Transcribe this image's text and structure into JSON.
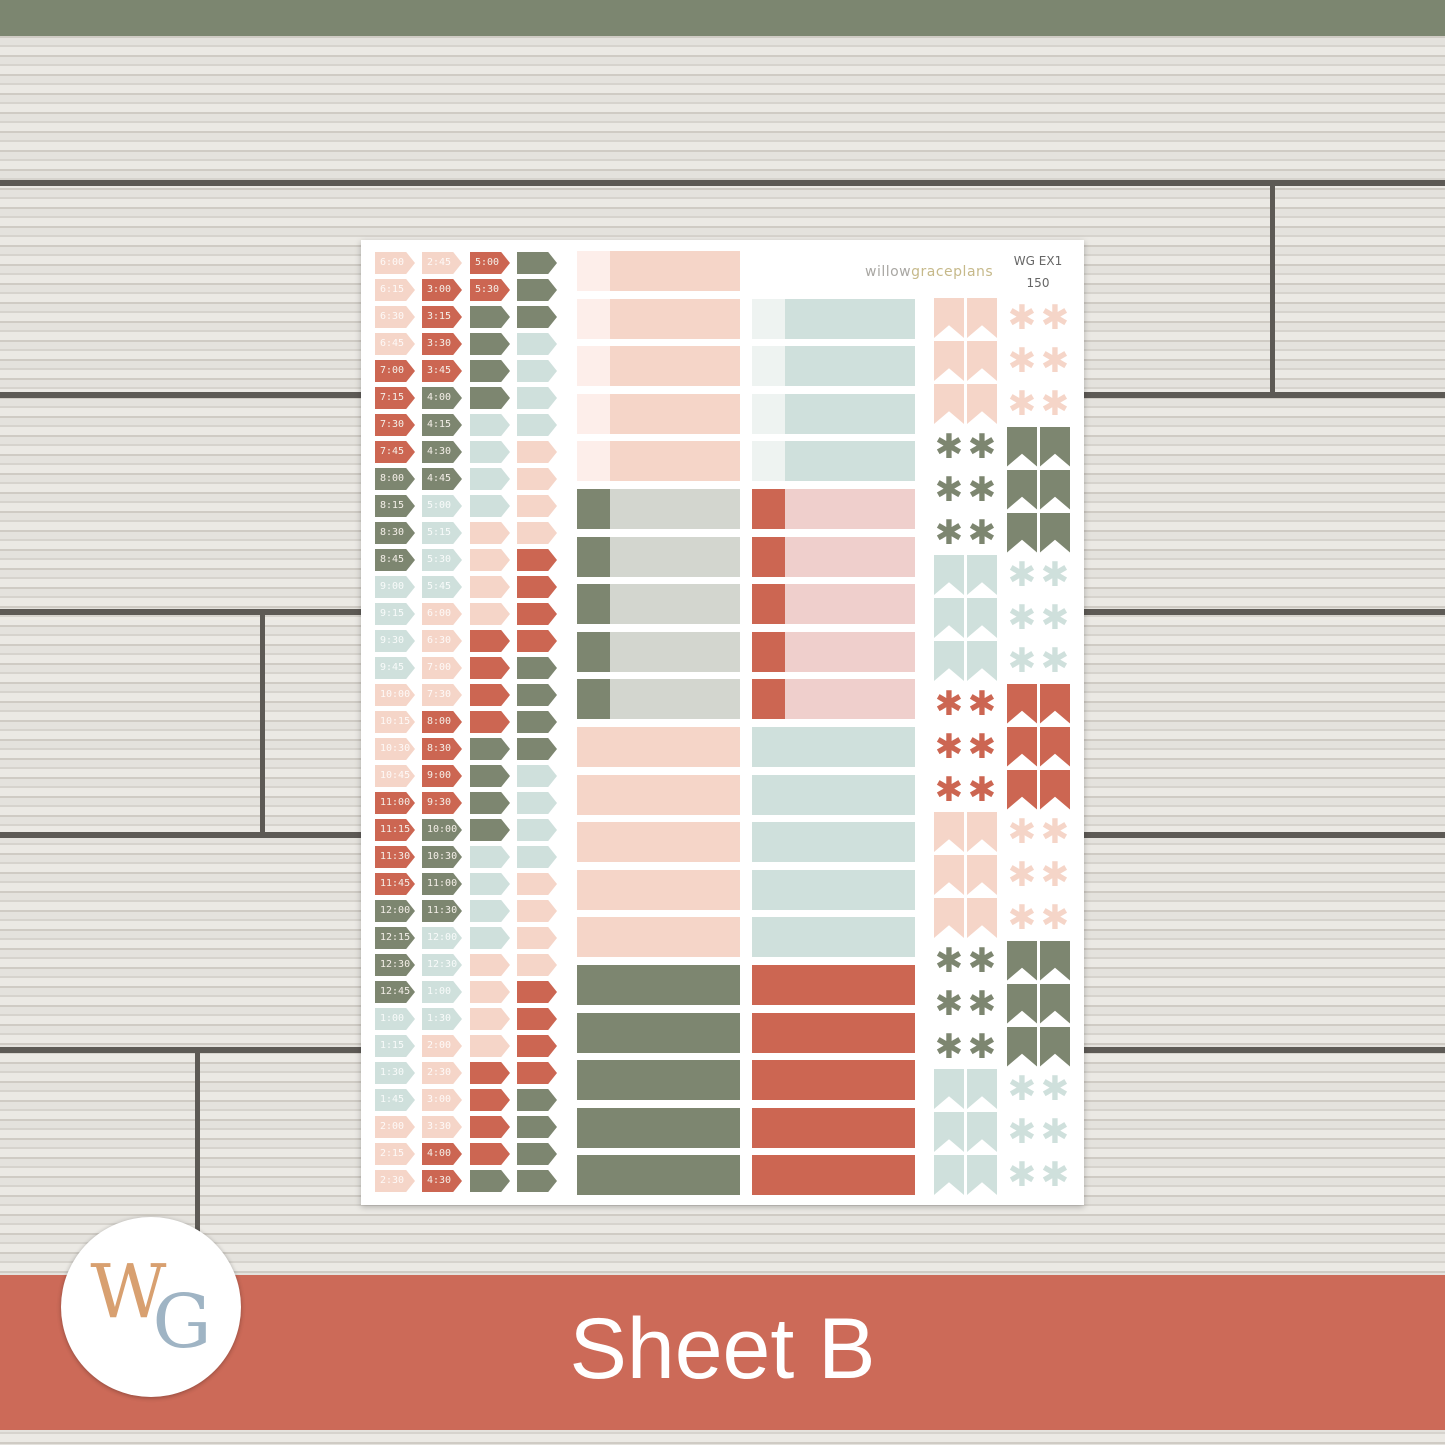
{
  "palette": {
    "peach": "#f5d5c8",
    "red": "#cc6652",
    "green": "#7d8670",
    "blue": "#cfe0dc",
    "blush": "#fdeeea",
    "mist": "#eef3f1",
    "sage_light": "#d3d6cf",
    "pink": "#efcfcc"
  },
  "sheet": {
    "brand_prefix": "willow",
    "brand_suffix": "graceplans",
    "code": "WG EX1",
    "number": "150",
    "time_columns": [
      [
        [
          "6:00",
          "peach"
        ],
        [
          "6:15",
          "peach"
        ],
        [
          "6:30",
          "peach"
        ],
        [
          "6:45",
          "peach"
        ],
        [
          "7:00",
          "red"
        ],
        [
          "7:15",
          "red"
        ],
        [
          "7:30",
          "red"
        ],
        [
          "7:45",
          "red"
        ],
        [
          "8:00",
          "green"
        ],
        [
          "8:15",
          "green"
        ],
        [
          "8:30",
          "green"
        ],
        [
          "8:45",
          "green"
        ],
        [
          "9:00",
          "blue"
        ],
        [
          "9:15",
          "blue"
        ],
        [
          "9:30",
          "blue"
        ],
        [
          "9:45",
          "blue"
        ],
        [
          "10:00",
          "peach"
        ],
        [
          "10:15",
          "peach"
        ],
        [
          "10:30",
          "peach"
        ],
        [
          "10:45",
          "peach"
        ],
        [
          "11:00",
          "red"
        ],
        [
          "11:15",
          "red"
        ],
        [
          "11:30",
          "red"
        ],
        [
          "11:45",
          "red"
        ],
        [
          "12:00",
          "green"
        ],
        [
          "12:15",
          "green"
        ],
        [
          "12:30",
          "green"
        ],
        [
          "12:45",
          "green"
        ],
        [
          "1:00",
          "blue"
        ],
        [
          "1:15",
          "blue"
        ],
        [
          "1:30",
          "blue"
        ],
        [
          "1:45",
          "blue"
        ],
        [
          "2:00",
          "peach"
        ],
        [
          "2:15",
          "peach"
        ],
        [
          "2:30",
          "peach"
        ]
      ],
      [
        [
          "2:45",
          "peach"
        ],
        [
          "3:00",
          "red"
        ],
        [
          "3:15",
          "red"
        ],
        [
          "3:30",
          "red"
        ],
        [
          "3:45",
          "red"
        ],
        [
          "4:00",
          "green"
        ],
        [
          "4:15",
          "green"
        ],
        [
          "4:30",
          "green"
        ],
        [
          "4:45",
          "green"
        ],
        [
          "5:00",
          "blue"
        ],
        [
          "5:15",
          "blue"
        ],
        [
          "5:30",
          "blue"
        ],
        [
          "5:45",
          "blue"
        ],
        [
          "6:00",
          "peach"
        ],
        [
          "6:30",
          "peach"
        ],
        [
          "7:00",
          "peach"
        ],
        [
          "7:30",
          "peach"
        ],
        [
          "8:00",
          "red"
        ],
        [
          "8:30",
          "red"
        ],
        [
          "9:00",
          "red"
        ],
        [
          "9:30",
          "red"
        ],
        [
          "10:00",
          "green"
        ],
        [
          "10:30",
          "green"
        ],
        [
          "11:00",
          "green"
        ],
        [
          "11:30",
          "green"
        ],
        [
          "12:00",
          "blue"
        ],
        [
          "12:30",
          "blue"
        ],
        [
          "1:00",
          "blue"
        ],
        [
          "1:30",
          "blue"
        ],
        [
          "2:00",
          "peach"
        ],
        [
          "2:30",
          "peach"
        ],
        [
          "3:00",
          "peach"
        ],
        [
          "3:30",
          "peach"
        ],
        [
          "4:00",
          "red"
        ],
        [
          "4:30",
          "red"
        ]
      ],
      [
        [
          "5:00",
          "red"
        ],
        [
          "5:30",
          "red"
        ],
        [
          "",
          "green"
        ],
        [
          "",
          "green"
        ],
        [
          "",
          "green"
        ],
        [
          "",
          "green"
        ],
        [
          "",
          "blue"
        ],
        [
          "",
          "blue"
        ],
        [
          "",
          "blue"
        ],
        [
          "",
          "blue"
        ],
        [
          "",
          "peach"
        ],
        [
          "",
          "peach"
        ],
        [
          "",
          "peach"
        ],
        [
          "",
          "peach"
        ],
        [
          "",
          "red"
        ],
        [
          "",
          "red"
        ],
        [
          "",
          "red"
        ],
        [
          "",
          "red"
        ],
        [
          "",
          "green"
        ],
        [
          "",
          "green"
        ],
        [
          "",
          "green"
        ],
        [
          "",
          "green"
        ],
        [
          "",
          "blue"
        ],
        [
          "",
          "blue"
        ],
        [
          "",
          "blue"
        ],
        [
          "",
          "blue"
        ],
        [
          "",
          "peach"
        ],
        [
          "",
          "peach"
        ],
        [
          "",
          "peach"
        ],
        [
          "",
          "peach"
        ],
        [
          "",
          "red"
        ],
        [
          "",
          "red"
        ],
        [
          "",
          "red"
        ],
        [
          "",
          "red"
        ],
        [
          "",
          "green"
        ]
      ],
      [
        [
          "",
          "green"
        ],
        [
          "",
          "green"
        ],
        [
          "",
          "green"
        ],
        [
          "",
          "blue"
        ],
        [
          "",
          "blue"
        ],
        [
          "",
          "blue"
        ],
        [
          "",
          "blue"
        ],
        [
          "",
          "peach"
        ],
        [
          "",
          "peach"
        ],
        [
          "",
          "peach"
        ],
        [
          "",
          "peach"
        ],
        [
          "",
          "red"
        ],
        [
          "",
          "red"
        ],
        [
          "",
          "red"
        ],
        [
          "",
          "red"
        ],
        [
          "",
          "green"
        ],
        [
          "",
          "green"
        ],
        [
          "",
          "green"
        ],
        [
          "",
          "green"
        ],
        [
          "",
          "blue"
        ],
        [
          "",
          "blue"
        ],
        [
          "",
          "blue"
        ],
        [
          "",
          "blue"
        ],
        [
          "",
          "peach"
        ],
        [
          "",
          "peach"
        ],
        [
          "",
          "peach"
        ],
        [
          "",
          "peach"
        ],
        [
          "",
          "red"
        ],
        [
          "",
          "red"
        ],
        [
          "",
          "red"
        ],
        [
          "",
          "red"
        ],
        [
          "",
          "green"
        ],
        [
          "",
          "green"
        ],
        [
          "",
          "green"
        ],
        [
          "",
          "green"
        ]
      ]
    ],
    "box_rows": [
      {
        "left": [
          "blush",
          "peach"
        ],
        "right": null
      },
      {
        "left": [
          "blush",
          "peach"
        ],
        "right": [
          "mist",
          "blue"
        ]
      },
      {
        "left": [
          "blush",
          "peach"
        ],
        "right": [
          "mist",
          "blue"
        ]
      },
      {
        "left": [
          "blush",
          "peach"
        ],
        "right": [
          "mist",
          "blue"
        ]
      },
      {
        "left": [
          "blush",
          "peach"
        ],
        "right": [
          "mist",
          "blue"
        ]
      },
      {
        "left": [
          "green",
          "sage_light"
        ],
        "right": [
          "red",
          "pink"
        ]
      },
      {
        "left": [
          "green",
          "sage_light"
        ],
        "right": [
          "red",
          "pink"
        ]
      },
      {
        "left": [
          "green",
          "sage_light"
        ],
        "right": [
          "red",
          "pink"
        ]
      },
      {
        "left": [
          "green",
          "sage_light"
        ],
        "right": [
          "red",
          "pink"
        ]
      },
      {
        "left": [
          "green",
          "sage_light"
        ],
        "right": [
          "red",
          "pink"
        ]
      },
      {
        "left": [
          "peach",
          "peach"
        ],
        "right": [
          "blue",
          "blue"
        ]
      },
      {
        "left": [
          "peach",
          "peach"
        ],
        "right": [
          "blue",
          "blue"
        ]
      },
      {
        "left": [
          "peach",
          "peach"
        ],
        "right": [
          "blue",
          "blue"
        ]
      },
      {
        "left": [
          "peach",
          "peach"
        ],
        "right": [
          "blue",
          "blue"
        ]
      },
      {
        "left": [
          "peach",
          "peach"
        ],
        "right": [
          "blue",
          "blue"
        ]
      },
      {
        "left": [
          "green",
          "green"
        ],
        "right": [
          "red",
          "red"
        ]
      },
      {
        "left": [
          "green",
          "green"
        ],
        "right": [
          "red",
          "red"
        ]
      },
      {
        "left": [
          "green",
          "green"
        ],
        "right": [
          "red",
          "red"
        ]
      },
      {
        "left": [
          "green",
          "green"
        ],
        "right": [
          "red",
          "red"
        ]
      },
      {
        "left": [
          "green",
          "green"
        ],
        "right": [
          "red",
          "red"
        ]
      }
    ],
    "icon_groups": [
      {
        "color": "peach",
        "flags_side": "left"
      },
      {
        "color": "green",
        "flags_side": "right"
      },
      {
        "color": "blue",
        "flags_side": "left"
      },
      {
        "color": "red",
        "flags_side": "right"
      },
      {
        "color": "peach",
        "flags_side": "left"
      },
      {
        "color": "green",
        "flags_side": "right"
      },
      {
        "color": "blue",
        "flags_side": "left"
      }
    ],
    "star_icon": "asterisk-icon",
    "flag_icon": "banner-flag-icon"
  },
  "banner": {
    "title": "Sheet B",
    "color": "#cc6a58"
  },
  "logo": {
    "text_w": "W",
    "text_g": "G"
  },
  "top_bar_color": "#7c8670"
}
